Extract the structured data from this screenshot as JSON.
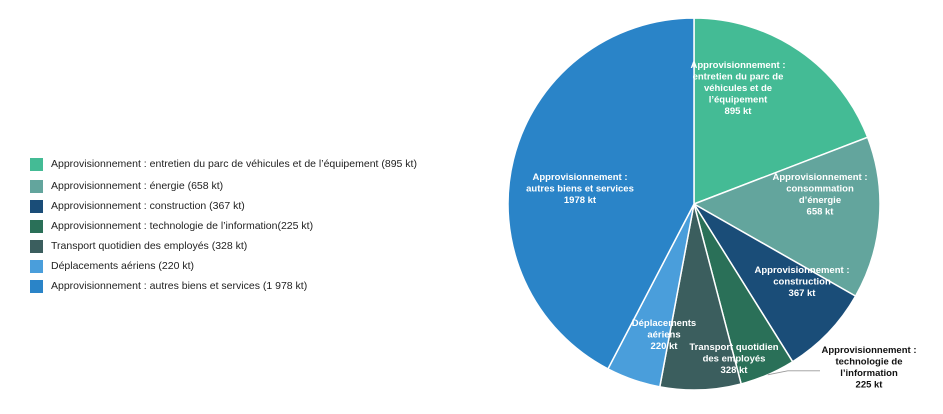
{
  "chart_data": {
    "type": "pie",
    "title": "",
    "legend_position": "left",
    "slices": [
      {
        "legend": "Approvisionnement : entretien du parc de véhicules et de l’équipement (895 kt)",
        "label_lines": [
          "Approvisionnement :",
          "entretien du parc de",
          "véhicules et de",
          "l’équipement",
          "895 kt"
        ],
        "value": 895,
        "color": "#44bb95"
      },
      {
        "legend": "Approvisionnement : énergie (658 kt)",
        "label_lines": [
          "Approvisionnement :",
          "consommation",
          "d’énergie",
          "658 kt"
        ],
        "value": 658,
        "color": "#63a59d"
      },
      {
        "legend": "Approvisionnement : construction (367 kt)",
        "label_lines": [
          "Approvisionnement :",
          "construction",
          "367 kt"
        ],
        "value": 367,
        "color": "#1a4d78"
      },
      {
        "legend": "Approvisionnement : technologie de l’information(225 kt)",
        "label_lines": [
          "Approvisionnement :",
          "technologie de",
          "l’information",
          "225 kt"
        ],
        "value": 225,
        "color": "#2a7058"
      },
      {
        "legend": "Transport quotidien des employés (328 kt)",
        "label_lines": [
          "Transport quotidien",
          "des employés",
          "328 kt"
        ],
        "value": 328,
        "color": "#3b5e5e"
      },
      {
        "legend": "Déplacements aériens (220 kt)",
        "label_lines": [
          "Déplacements",
          "aériens",
          "220 kt"
        ],
        "value": 220,
        "color": "#4a9edb"
      },
      {
        "legend": "Approvisionnement : autres biens et services (1 978 kt)",
        "label_lines": [
          "Approvisionnement :",
          "autres biens et services",
          "1978 kt"
        ],
        "value": 1978,
        "color": "#2a84c8"
      }
    ]
  }
}
